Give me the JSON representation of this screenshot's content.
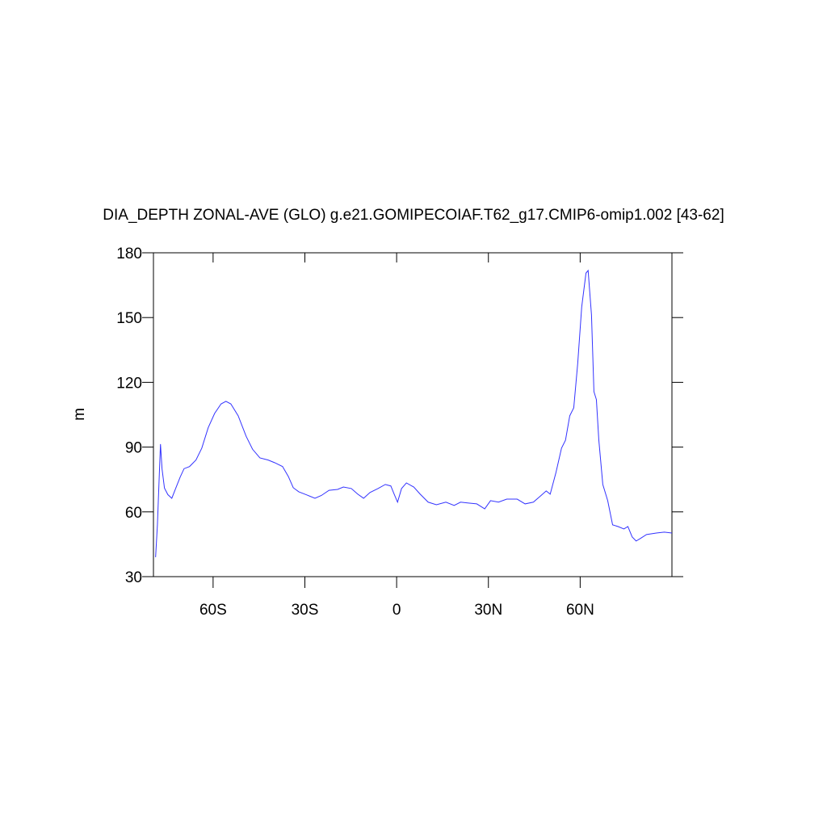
{
  "chart_data": {
    "type": "line",
    "title": "DIA_DEPTH ZONAL-AVE (GLO) g.e21.GOMIPECOIAF.T62_g17.CMIP6-omip1.002 [43-62]",
    "y_label": "m",
    "x": [
      -78.8,
      -78.2,
      -77.7,
      -77.2,
      -76.7,
      -75.9,
      -74.8,
      -73.5,
      -72.2,
      -70.8,
      -69.5,
      -67.7,
      -65.6,
      -63.7,
      -61.6,
      -59.5,
      -57.4,
      -55.8,
      -54.2,
      -51.8,
      -49.2,
      -47.1,
      -44.7,
      -42.0,
      -39.9,
      -37.3,
      -35.4,
      -33.8,
      -32.0,
      -29.3,
      -26.7,
      -24.6,
      -22.1,
      -19.3,
      -17.4,
      -14.8,
      -12.7,
      -10.8,
      -8.7,
      -6.1,
      -3.7,
      -1.9,
      -0.8,
      0.3,
      1.6,
      3.2,
      5.6,
      7.7,
      10.3,
      13.0,
      16.1,
      18.8,
      20.9,
      23.5,
      26.2,
      28.8,
      30.7,
      33.3,
      36.0,
      39.4,
      42.0,
      44.7,
      46.8,
      48.9,
      50.2,
      52.1,
      53.9,
      55.2,
      56.6,
      57.9,
      59.2,
      60.5,
      61.9,
      62.6,
      63.7,
      64.5,
      65.3,
      66.1,
      67.4,
      69.0,
      70.6,
      72.4,
      74.3,
      75.6,
      77.0,
      78.3,
      79.6,
      81.7,
      84.9,
      87.5,
      90.0
    ],
    "series": [
      {
        "name": "DIA_DEPTH",
        "color": "#3333ff",
        "values": [
          39,
          54,
          73,
          91.4,
          80,
          71,
          68,
          66.3,
          71,
          76,
          80,
          81,
          84,
          89.5,
          99,
          105.6,
          110,
          111.2,
          110,
          104.5,
          95,
          89,
          85,
          84,
          82.8,
          81,
          76.4,
          71.2,
          69.3,
          67.8,
          66.3,
          67.6,
          70,
          70.4,
          71.5,
          70.8,
          68.2,
          66.3,
          69,
          70.8,
          72.7,
          72,
          68.2,
          64.5,
          70.8,
          73.4,
          71.5,
          68.2,
          64.5,
          63.3,
          64.5,
          63,
          64.5,
          64.1,
          63.7,
          61.4,
          65.2,
          64.5,
          65.9,
          65.9,
          63.7,
          64.5,
          67.1,
          69.7,
          68.2,
          78.3,
          89.5,
          93.2,
          104.5,
          108.2,
          128.8,
          154.9,
          170.6,
          171.8,
          151.2,
          115.7,
          112,
          93.2,
          72.7,
          65.2,
          54,
          53.2,
          52.1,
          53.2,
          48.4,
          46.5,
          47.6,
          49.5,
          50.2,
          50.6,
          50.2
        ]
      }
    ],
    "xlim": [
      -79.5,
      90
    ],
    "xticks": [
      {
        "value": -60,
        "label": "60S"
      },
      {
        "value": -30,
        "label": "30S"
      },
      0,
      {
        "value": 30,
        "label": "30N"
      },
      {
        "value": 60,
        "label": "60N"
      }
    ],
    "ylim": [
      30,
      180
    ],
    "yticks": [
      30,
      60,
      90,
      120,
      150,
      180
    ],
    "grid": false
  }
}
